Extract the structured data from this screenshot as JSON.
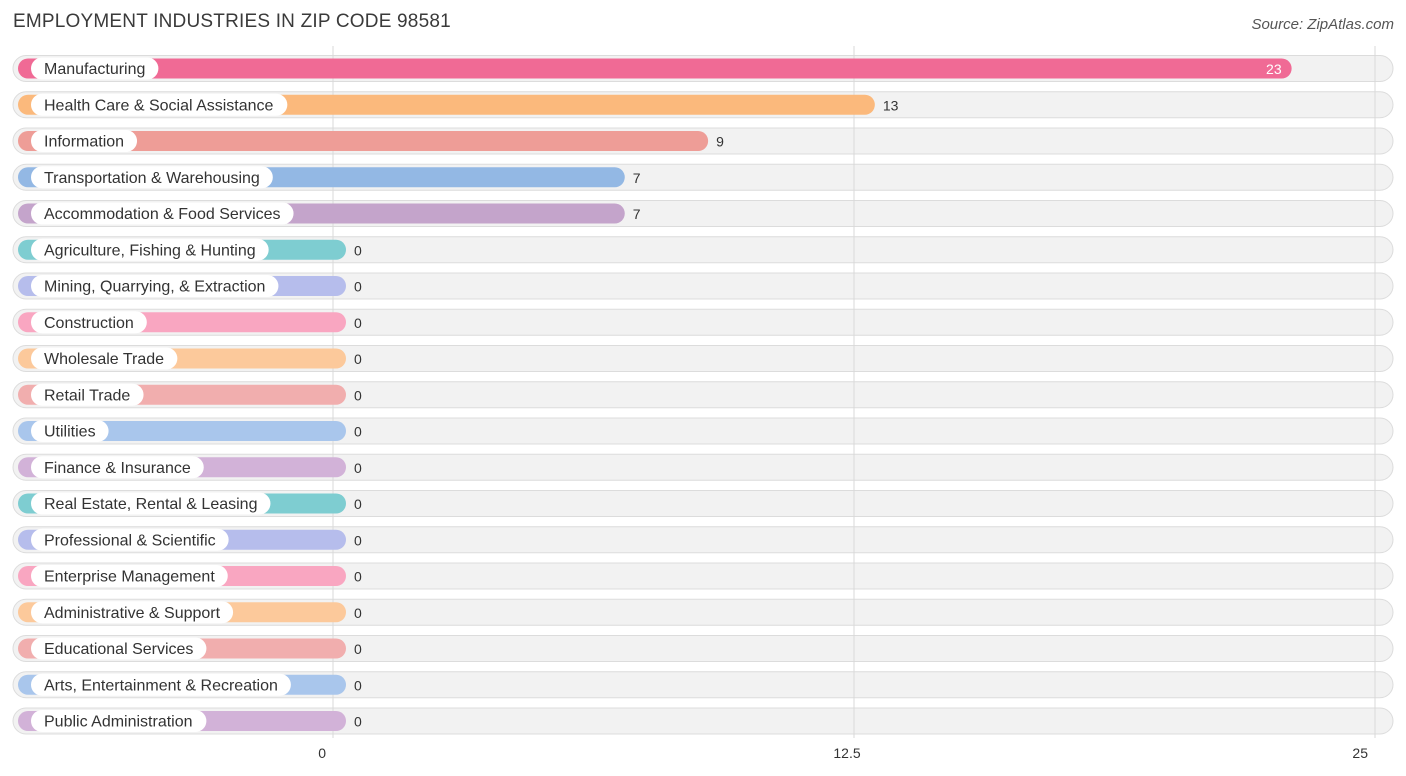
{
  "header": {
    "title": "EMPLOYMENT INDUSTRIES IN ZIP CODE 98581",
    "source": "Source: ZipAtlas.com"
  },
  "chart_data": {
    "type": "bar",
    "orientation": "horizontal",
    "title": "EMPLOYMENT INDUSTRIES IN ZIP CODE 98581",
    "xlabel": "",
    "ylabel": "",
    "xlim": [
      0,
      25
    ],
    "ticks": [
      0,
      12.5,
      25
    ],
    "tick_labels": [
      "0",
      "12.5",
      "25"
    ],
    "grid": true,
    "categories": [
      "Manufacturing",
      "Health Care & Social Assistance",
      "Information",
      "Transportation & Warehousing",
      "Accommodation & Food Services",
      "Agriculture, Fishing & Hunting",
      "Mining, Quarrying, & Extraction",
      "Construction",
      "Wholesale Trade",
      "Retail Trade",
      "Utilities",
      "Finance & Insurance",
      "Real Estate, Rental & Leasing",
      "Professional & Scientific",
      "Enterprise Management",
      "Administrative & Support",
      "Educational Services",
      "Arts, Entertainment & Recreation",
      "Public Administration"
    ],
    "values": [
      23,
      13,
      9,
      7,
      7,
      0,
      0,
      0,
      0,
      0,
      0,
      0,
      0,
      0,
      0,
      0,
      0,
      0,
      0
    ],
    "colors": [
      "#f06a95",
      "#fbb97c",
      "#ee9d97",
      "#93b8e4",
      "#c4a4cb",
      "#7ecdd1",
      "#b6bdec",
      "#f9a6c1",
      "#fcc99b",
      "#f1aeae",
      "#a9c6ec",
      "#d2b2d8",
      "#7ecdd1",
      "#b6bdec",
      "#f9a6c1",
      "#fcc99b",
      "#f1aeae",
      "#a9c6ec",
      "#d2b2d8"
    ]
  }
}
